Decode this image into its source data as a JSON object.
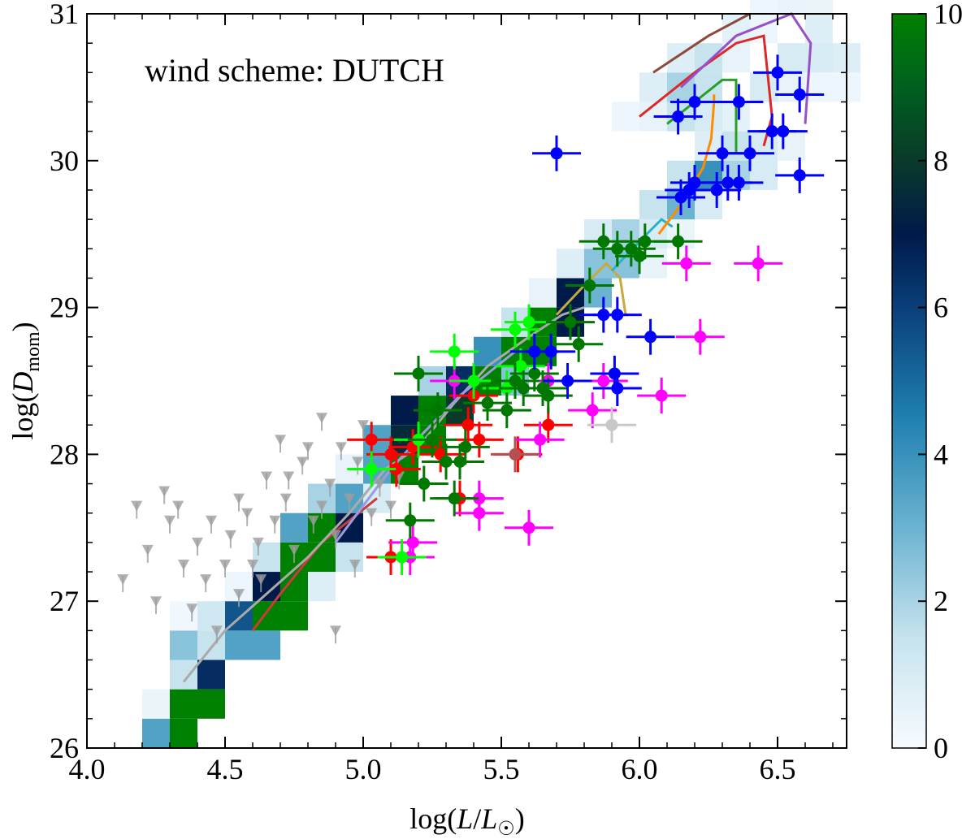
{
  "chart_data": {
    "type": "scatter",
    "annotation": "wind scheme: DUTCH",
    "xlabel": "log(L/L☉)",
    "ylabel": "log(Dmom)",
    "xlim": [
      4.0,
      6.75
    ],
    "ylim": [
      26,
      31
    ],
    "xticks": [
      "4.0",
      "4.5",
      "5.0",
      "5.5",
      "6.0",
      "6.5"
    ],
    "yticks": [
      "26",
      "27",
      "28",
      "29",
      "30",
      "31"
    ],
    "colorbar": {
      "range": [
        0,
        10
      ],
      "ticks": [
        "0",
        "2",
        "4",
        "6",
        "8",
        "10"
      ],
      "colormap": "white-lightblue-blue-navy-green"
    },
    "heatmap": {
      "x_bin_width": 0.1,
      "y_bin_width": 0.2,
      "cells": [
        [
          4.2,
          26.0,
          3.5
        ],
        [
          4.3,
          26.0,
          10
        ],
        [
          4.2,
          26.2,
          0.4
        ],
        [
          4.3,
          26.2,
          10
        ],
        [
          4.4,
          26.2,
          10
        ],
        [
          4.3,
          26.4,
          1.5
        ],
        [
          4.4,
          26.4,
          6.5
        ],
        [
          4.3,
          26.6,
          2.5
        ],
        [
          4.4,
          26.6,
          1.5
        ],
        [
          4.5,
          26.6,
          3.5
        ],
        [
          4.6,
          26.6,
          3.5
        ],
        [
          4.3,
          26.8,
          0.2
        ],
        [
          4.4,
          26.8,
          1.2
        ],
        [
          4.5,
          26.8,
          5.5
        ],
        [
          4.6,
          26.8,
          10
        ],
        [
          4.7,
          26.8,
          10
        ],
        [
          4.5,
          27.0,
          0.3
        ],
        [
          4.6,
          27.0,
          7.0
        ],
        [
          4.7,
          27.0,
          10
        ],
        [
          4.8,
          27.0,
          0.8
        ],
        [
          4.6,
          27.2,
          1.5
        ],
        [
          4.7,
          27.2,
          10
        ],
        [
          4.8,
          27.2,
          10
        ],
        [
          4.9,
          27.2,
          1.5
        ],
        [
          4.7,
          27.4,
          3.5
        ],
        [
          4.8,
          27.4,
          10
        ],
        [
          4.9,
          27.4,
          7.0
        ],
        [
          4.8,
          27.6,
          2.0
        ],
        [
          4.9,
          27.6,
          3.5
        ],
        [
          5.0,
          27.6,
          1.0
        ],
        [
          4.9,
          27.8,
          0.5
        ],
        [
          5.0,
          27.8,
          3.5
        ],
        [
          5.1,
          27.8,
          10
        ],
        [
          5.0,
          28.0,
          3.5
        ],
        [
          5.1,
          28.0,
          7.5
        ],
        [
          5.2,
          28.0,
          10
        ],
        [
          5.1,
          28.2,
          7.0
        ],
        [
          5.2,
          28.2,
          10
        ],
        [
          5.3,
          28.2,
          8.0
        ],
        [
          5.2,
          28.4,
          2.0
        ],
        [
          5.3,
          28.4,
          6.5
        ],
        [
          5.4,
          28.4,
          10
        ],
        [
          5.5,
          28.4,
          2.5
        ],
        [
          5.4,
          28.6,
          4.0
        ],
        [
          5.5,
          28.6,
          10
        ],
        [
          5.6,
          28.6,
          10
        ],
        [
          5.5,
          28.8,
          1.5
        ],
        [
          5.6,
          28.8,
          10
        ],
        [
          5.7,
          28.8,
          7.0
        ],
        [
          5.6,
          29.0,
          0.5
        ],
        [
          5.7,
          29.0,
          7.0
        ],
        [
          5.8,
          29.0,
          3.0
        ],
        [
          5.7,
          29.2,
          0.8
        ],
        [
          5.8,
          29.2,
          2.5
        ],
        [
          5.9,
          29.2,
          2.5
        ],
        [
          6.0,
          29.2,
          0.5
        ],
        [
          5.8,
          29.4,
          1.0
        ],
        [
          5.9,
          29.4,
          2.0
        ],
        [
          6.0,
          29.4,
          1.0
        ],
        [
          6.1,
          29.4,
          0.4
        ],
        [
          6.0,
          29.6,
          1.5
        ],
        [
          6.1,
          29.6,
          3.0
        ],
        [
          6.2,
          29.6,
          1.0
        ],
        [
          6.1,
          29.8,
          1.5
        ],
        [
          6.2,
          29.8,
          4.0
        ],
        [
          6.3,
          29.8,
          2.0
        ],
        [
          6.4,
          29.8,
          1.0
        ],
        [
          6.2,
          30.0,
          0.8
        ],
        [
          6.3,
          30.0,
          1.5
        ],
        [
          6.4,
          30.0,
          1.0
        ],
        [
          6.5,
          30.0,
          0.5
        ],
        [
          5.9,
          30.2,
          0.3
        ],
        [
          6.0,
          30.2,
          0.5
        ],
        [
          6.1,
          30.2,
          1.5
        ],
        [
          6.2,
          30.2,
          1.0
        ],
        [
          6.3,
          30.2,
          0.6
        ],
        [
          6.0,
          30.4,
          0.8
        ],
        [
          6.1,
          30.4,
          2.0
        ],
        [
          6.2,
          30.4,
          1.5
        ],
        [
          6.4,
          30.4,
          1.0
        ],
        [
          6.5,
          30.4,
          0.5
        ],
        [
          6.6,
          30.4,
          0.3
        ],
        [
          6.7,
          30.4,
          0.3
        ],
        [
          6.1,
          30.6,
          0.8
        ],
        [
          6.2,
          30.6,
          1.5
        ],
        [
          6.3,
          30.6,
          0.5
        ],
        [
          6.5,
          30.6,
          1.0
        ],
        [
          6.6,
          30.6,
          1.0
        ],
        [
          6.7,
          30.6,
          0.8
        ],
        [
          6.3,
          30.8,
          0.6
        ],
        [
          6.4,
          30.8,
          0.3
        ],
        [
          6.6,
          30.8,
          0.8
        ],
        [
          6.4,
          31.0,
          0.3
        ],
        [
          6.5,
          31.0,
          0.5
        ],
        [
          6.6,
          31.0,
          0.4
        ]
      ]
    },
    "series": [
      {
        "name": "grey upper limits",
        "color": "#9e9e9e",
        "marker": "triangle-down",
        "points": [
          [
            4.13,
            27.15
          ],
          [
            4.18,
            27.65
          ],
          [
            4.22,
            27.35
          ],
          [
            4.25,
            27.0
          ],
          [
            4.28,
            27.75
          ],
          [
            4.3,
            27.55
          ],
          [
            4.33,
            27.65
          ],
          [
            4.35,
            27.25
          ],
          [
            4.38,
            26.95
          ],
          [
            4.4,
            27.4
          ],
          [
            4.43,
            27.15
          ],
          [
            4.45,
            27.55
          ],
          [
            4.47,
            26.8
          ],
          [
            4.5,
            27.25
          ],
          [
            4.52,
            27.45
          ],
          [
            4.55,
            27.05
          ],
          [
            4.58,
            27.6
          ],
          [
            4.6,
            27.25
          ],
          [
            4.62,
            27.4
          ],
          [
            4.65,
            27.85
          ],
          [
            4.68,
            27.55
          ],
          [
            4.7,
            28.1
          ],
          [
            4.72,
            27.7
          ],
          [
            4.75,
            27.35
          ],
          [
            4.78,
            27.95
          ],
          [
            4.8,
            28.05
          ],
          [
            4.82,
            27.55
          ],
          [
            4.85,
            28.25
          ],
          [
            4.88,
            27.8
          ],
          [
            4.9,
            27.45
          ],
          [
            4.92,
            28.05
          ],
          [
            4.95,
            27.7
          ],
          [
            4.98,
            27.95
          ],
          [
            5.0,
            28.2
          ],
          [
            5.03,
            27.6
          ],
          [
            5.06,
            27.8
          ],
          [
            5.1,
            27.65
          ],
          [
            5.13,
            27.85
          ],
          [
            4.55,
            27.7
          ],
          [
            4.63,
            27.15
          ],
          [
            4.73,
            27.85
          ],
          [
            4.85,
            27.65
          ],
          [
            4.9,
            26.8
          ],
          [
            4.97,
            27.25
          ]
        ]
      },
      {
        "name": "red",
        "color": "#ff0000",
        "points": [
          [
            5.03,
            28.1
          ],
          [
            5.1,
            28.0
          ],
          [
            5.12,
            27.9
          ],
          [
            5.18,
            28.05
          ],
          [
            5.28,
            28.0
          ],
          [
            5.35,
            27.7
          ],
          [
            5.38,
            28.2
          ],
          [
            5.4,
            28.4
          ],
          [
            5.42,
            28.1
          ],
          [
            5.56,
            28.0
          ],
          [
            5.67,
            28.2
          ],
          [
            5.1,
            27.3
          ]
        ]
      },
      {
        "name": "magenta",
        "color": "#ff00ff",
        "points": [
          [
            5.33,
            28.5
          ],
          [
            5.42,
            27.7
          ],
          [
            5.42,
            27.6
          ],
          [
            5.18,
            27.4
          ],
          [
            5.17,
            27.3
          ],
          [
            5.6,
            27.5
          ],
          [
            5.64,
            28.1
          ],
          [
            5.67,
            28.5
          ],
          [
            5.83,
            28.3
          ],
          [
            5.87,
            28.5
          ],
          [
            6.08,
            28.4
          ],
          [
            6.22,
            28.8
          ],
          [
            6.17,
            29.3
          ],
          [
            6.43,
            29.3
          ]
        ]
      },
      {
        "name": "lime",
        "color": "#00ff00",
        "points": [
          [
            5.03,
            27.9
          ],
          [
            5.14,
            27.3
          ],
          [
            5.2,
            28.1
          ],
          [
            5.33,
            28.7
          ],
          [
            5.52,
            28.45
          ],
          [
            5.55,
            28.85
          ],
          [
            5.57,
            28.6
          ],
          [
            5.6,
            28.9
          ],
          [
            5.4,
            28.5
          ]
        ]
      },
      {
        "name": "green",
        "color": "#007800",
        "points": [
          [
            5.17,
            27.55
          ],
          [
            5.2,
            28.55
          ],
          [
            5.22,
            27.8
          ],
          [
            5.25,
            28.1
          ],
          [
            5.27,
            28.3
          ],
          [
            5.3,
            27.95
          ],
          [
            5.33,
            27.7
          ],
          [
            5.35,
            27.95
          ],
          [
            5.37,
            28.05
          ],
          [
            5.45,
            28.35
          ],
          [
            5.52,
            28.3
          ],
          [
            5.55,
            28.5
          ],
          [
            5.58,
            28.45
          ],
          [
            5.62,
            28.55
          ],
          [
            5.65,
            28.45
          ],
          [
            5.67,
            28.4
          ],
          [
            5.75,
            28.9
          ],
          [
            5.78,
            28.75
          ],
          [
            5.82,
            29.15
          ],
          [
            5.87,
            29.45
          ],
          [
            5.92,
            29.4
          ],
          [
            5.97,
            29.4
          ],
          [
            6.0,
            29.35
          ],
          [
            6.02,
            29.45
          ],
          [
            6.14,
            29.45
          ]
        ]
      },
      {
        "name": "blue",
        "color": "#0000ff",
        "points": [
          [
            5.7,
            30.05
          ],
          [
            5.62,
            28.7
          ],
          [
            5.68,
            28.7
          ],
          [
            5.74,
            28.5
          ],
          [
            5.87,
            28.95
          ],
          [
            5.92,
            28.95
          ],
          [
            5.91,
            28.55
          ],
          [
            5.92,
            28.45
          ],
          [
            6.04,
            28.8
          ],
          [
            6.15,
            29.75
          ],
          [
            6.18,
            29.8
          ],
          [
            6.2,
            29.85
          ],
          [
            6.28,
            29.8
          ],
          [
            6.3,
            30.05
          ],
          [
            6.32,
            29.85
          ],
          [
            6.36,
            29.85
          ],
          [
            6.4,
            30.05
          ],
          [
            6.48,
            30.2
          ],
          [
            6.52,
            30.2
          ],
          [
            6.58,
            29.9
          ],
          [
            6.2,
            30.4
          ],
          [
            6.14,
            30.3
          ],
          [
            6.36,
            30.4
          ],
          [
            6.5,
            30.6
          ],
          [
            6.58,
            30.45
          ]
        ]
      },
      {
        "name": "brown",
        "color": "#b55050",
        "points": [
          [
            5.55,
            28.0
          ]
        ]
      },
      {
        "name": "grey",
        "color": "#c8c8c8",
        "points": [
          [
            5.9,
            28.2
          ]
        ]
      }
    ],
    "tracks": [
      {
        "color": "#c83c3c",
        "points": [
          [
            4.6,
            26.8
          ],
          [
            4.7,
            27.05
          ],
          [
            4.85,
            27.4
          ],
          [
            4.95,
            27.55
          ],
          [
            5.05,
            27.7
          ]
        ]
      },
      {
        "color": "#aaaaaa",
        "points": [
          [
            4.35,
            26.45
          ],
          [
            4.5,
            26.8
          ],
          [
            4.62,
            27.0
          ],
          [
            4.8,
            27.3
          ],
          [
            4.95,
            27.6
          ],
          [
            5.08,
            27.9
          ],
          [
            5.2,
            28.05
          ],
          [
            5.33,
            28.35
          ],
          [
            5.45,
            28.6
          ],
          [
            5.6,
            28.8
          ],
          [
            5.72,
            28.95
          ],
          [
            5.8,
            29.0
          ]
        ]
      },
      {
        "color": "#9c9cdc",
        "points": [
          [
            4.9,
            27.4
          ],
          [
            5.0,
            27.65
          ],
          [
            5.1,
            27.9
          ],
          [
            5.22,
            28.15
          ],
          [
            5.35,
            28.4
          ],
          [
            5.45,
            28.55
          ],
          [
            5.55,
            28.7
          ]
        ]
      },
      {
        "color": "#c8aa3c",
        "points": [
          [
            5.7,
            28.95
          ],
          [
            5.8,
            29.15
          ],
          [
            5.88,
            29.3
          ],
          [
            5.93,
            29.2
          ],
          [
            5.95,
            28.95
          ]
        ]
      },
      {
        "color": "#28b4c8",
        "points": [
          [
            5.9,
            29.25
          ],
          [
            6.0,
            29.45
          ],
          [
            6.08,
            29.6
          ],
          [
            6.12,
            29.55
          ]
        ]
      },
      {
        "color": "#ff8c00",
        "points": [
          [
            6.07,
            29.5
          ],
          [
            6.15,
            29.7
          ],
          [
            6.23,
            29.95
          ],
          [
            6.26,
            30.15
          ],
          [
            6.27,
            30.4
          ],
          [
            6.27,
            30.45
          ]
        ]
      },
      {
        "color": "#28a028",
        "points": [
          [
            6.1,
            30.25
          ],
          [
            6.2,
            30.4
          ],
          [
            6.3,
            30.55
          ],
          [
            6.35,
            30.55
          ],
          [
            6.35,
            30.05
          ]
        ]
      },
      {
        "color": "#dc2828",
        "points": [
          [
            6.0,
            30.3
          ],
          [
            6.2,
            30.6
          ],
          [
            6.35,
            30.8
          ],
          [
            6.45,
            30.85
          ],
          [
            6.48,
            30.3
          ],
          [
            6.45,
            30.1
          ]
        ]
      },
      {
        "color": "#9650c8",
        "points": [
          [
            6.15,
            30.5
          ],
          [
            6.35,
            30.85
          ],
          [
            6.55,
            31.0
          ],
          [
            6.62,
            30.8
          ],
          [
            6.6,
            30.25
          ]
        ]
      },
      {
        "color": "#8c4a3c",
        "points": [
          [
            6.05,
            30.6
          ],
          [
            6.25,
            30.85
          ],
          [
            6.4,
            31.0
          ]
        ]
      }
    ]
  }
}
